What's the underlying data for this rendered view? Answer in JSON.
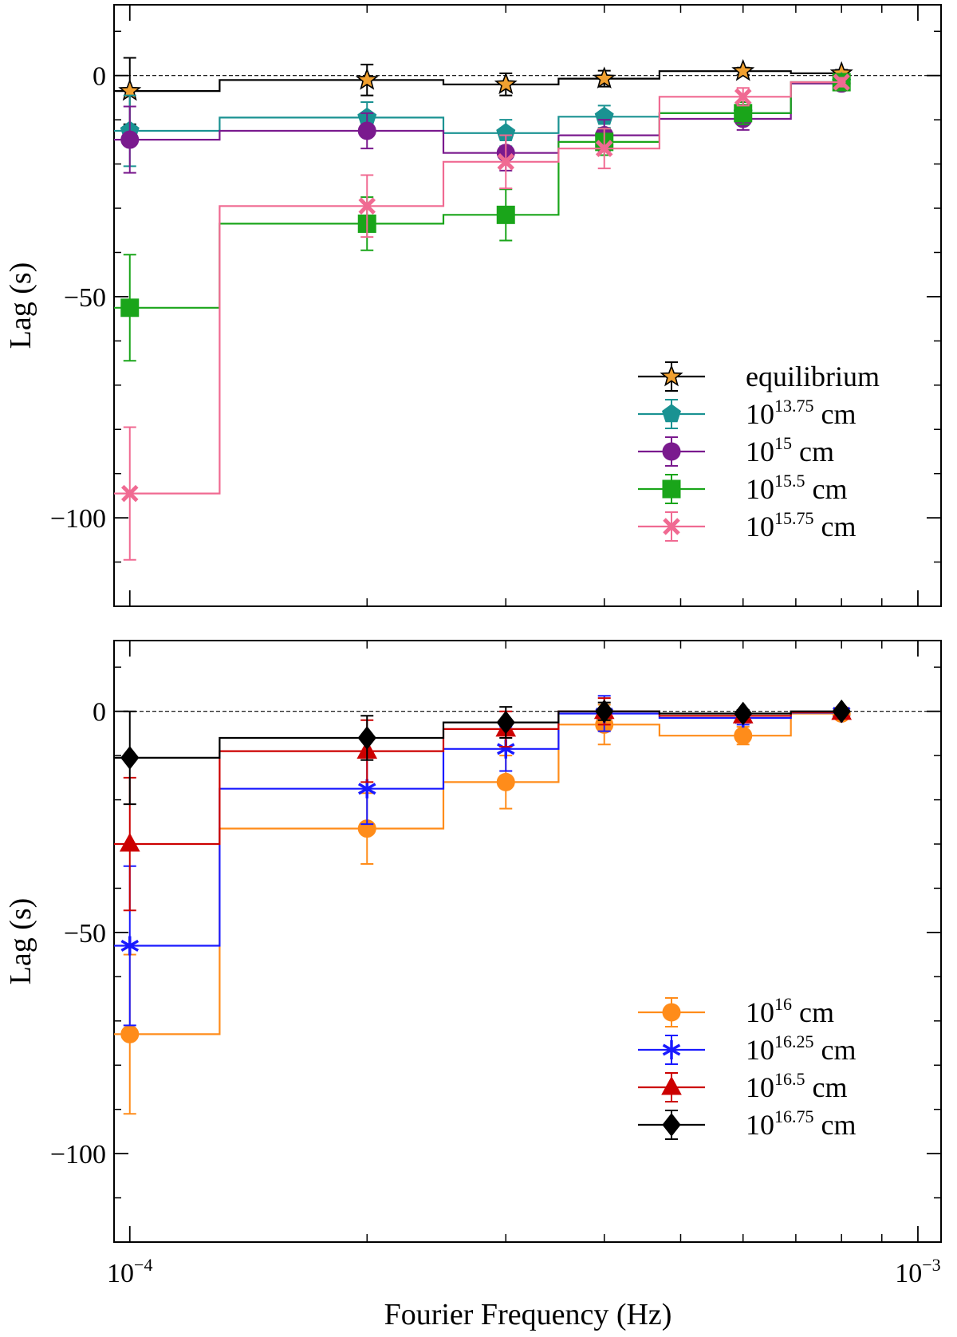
{
  "x_axis": {
    "label": "Fourier Frequency (Hz)",
    "scale": "log",
    "range": [
      9.55e-05,
      0.00107
    ],
    "ticks": [
      {
        "value": 0.0001,
        "base": "10",
        "exp": "−4"
      },
      {
        "value": 0.001,
        "base": "10",
        "exp": "−3"
      }
    ]
  },
  "chart_data": [
    {
      "type": "line",
      "style": "step-with-errorbars",
      "panel": "top",
      "ylabel": "Lag (s)",
      "xlabel": "",
      "ylim": [
        -120,
        16
      ],
      "yticks": [
        0,
        -50,
        -100
      ],
      "ytick_labels": [
        "0",
        "−50",
        "−100"
      ],
      "reference_line": 0,
      "bin_edges": [
        7.3e-05,
        0.00013,
        0.00025,
        0.00035,
        0.00047,
        0.00069,
        0.00081,
        0.00092
      ],
      "x": [
        0.0001,
        0.0002,
        0.0003,
        0.0004,
        0.0006,
        0.0008
      ],
      "legend_position": "lower-right",
      "series": [
        {
          "name": "equilibrium",
          "label_base": "equilibrium",
          "label_exp": "",
          "label_unit": "",
          "color": "#000000",
          "marker": "star",
          "marker_fill": "#f0a030",
          "values": [
            -3.5,
            -1,
            -2,
            -0.7,
            1,
            0.5
          ],
          "errors": [
            7.5,
            3.5,
            2.5,
            1.8,
            0.8,
            0.8
          ]
        },
        {
          "name": "10^13.75 cm",
          "label_base": "10",
          "label_exp": "13.75",
          "label_unit": " cm",
          "color": "#1a9292",
          "marker": "pentagon",
          "marker_fill": "#1a9292",
          "values": [
            -12.5,
            -9.5,
            -13,
            -9.3,
            -8.5,
            -1.5
          ],
          "errors": [
            8,
            3.5,
            3,
            2.5,
            2.5,
            1
          ]
        },
        {
          "name": "10^15 cm",
          "label_base": "10",
          "label_exp": "15",
          "label_unit": " cm",
          "color": "#7a1a8e",
          "marker": "circle",
          "marker_fill": "#7a1a8e",
          "values": [
            -14.5,
            -12.5,
            -17.5,
            -13.5,
            -9.8,
            -1.8
          ],
          "errors": [
            7.5,
            4,
            4,
            3.5,
            2.5,
            1
          ]
        },
        {
          "name": "10^15.5 cm",
          "label_base": "10",
          "label_exp": "15.5",
          "label_unit": " cm",
          "color": "#1aa51a",
          "marker": "square",
          "marker_fill": "#1aa51a",
          "values": [
            -52.5,
            -33.5,
            -31.5,
            -15,
            -8.5,
            -1.5
          ],
          "errors": [
            12,
            6,
            5.8,
            3,
            2.5,
            1
          ]
        },
        {
          "name": "10^15.75 cm",
          "label_base": "10",
          "label_exp": "15.75",
          "label_unit": " cm",
          "color": "#f06a92",
          "marker": "x",
          "marker_fill": "#f06a92",
          "values": [
            -94.5,
            -29.5,
            -19.5,
            -16.5,
            -4.8,
            -1.5
          ],
          "errors": [
            15,
            7,
            6,
            4.5,
            2,
            1
          ]
        }
      ]
    },
    {
      "type": "line",
      "style": "step-with-errorbars",
      "panel": "bottom",
      "ylabel": "Lag (s)",
      "xlabel": "Fourier Frequency (Hz)",
      "ylim": [
        -120,
        16
      ],
      "yticks": [
        0,
        -50,
        -100
      ],
      "ytick_labels": [
        "0",
        "−50",
        "−100"
      ],
      "reference_line": 0,
      "bin_edges": [
        7.3e-05,
        0.00013,
        0.00025,
        0.00035,
        0.00047,
        0.00069,
        0.00081,
        0.00092
      ],
      "x": [
        0.0001,
        0.0002,
        0.0003,
        0.0004,
        0.0006,
        0.0008
      ],
      "legend_position": "lower-right",
      "series": [
        {
          "name": "10^16 cm",
          "label_base": "10",
          "label_exp": "16",
          "label_unit": " cm",
          "color": "#ff8c1a",
          "marker": "circle",
          "marker_fill": "#ff8c1a",
          "values": [
            -73,
            -26.5,
            -16,
            -3,
            -5.5,
            -0.5
          ],
          "errors": [
            18,
            8,
            6,
            4.5,
            2,
            1
          ]
        },
        {
          "name": "10^16.25 cm",
          "label_base": "10",
          "label_exp": "16.25",
          "label_unit": " cm",
          "color": "#1a1aff",
          "marker": "asterisk",
          "marker_fill": "#1a1aff",
          "values": [
            -53,
            -17.5,
            -8.5,
            -0.5,
            -1.5,
            -0.3
          ],
          "errors": [
            18,
            8,
            5,
            4,
            1.5,
            0.8
          ]
        },
        {
          "name": "10^16.5 cm",
          "label_base": "10",
          "label_exp": "16.5",
          "label_unit": " cm",
          "color": "#cc0000",
          "marker": "triangle",
          "marker_fill": "#cc0000",
          "values": [
            -30,
            -9,
            -4,
            0,
            -1,
            -0.2
          ],
          "errors": [
            15,
            7,
            4,
            3,
            1.2,
            0.8
          ]
        },
        {
          "name": "10^16.75 cm",
          "label_base": "10",
          "label_exp": "16.75",
          "label_unit": " cm",
          "color": "#000000",
          "marker": "diamond",
          "marker_fill": "#000000",
          "values": [
            -10.5,
            -6,
            -2.5,
            0,
            -0.5,
            0
          ],
          "errors": [
            10.5,
            5,
            3.5,
            2,
            0.8,
            0.5
          ]
        }
      ]
    }
  ]
}
